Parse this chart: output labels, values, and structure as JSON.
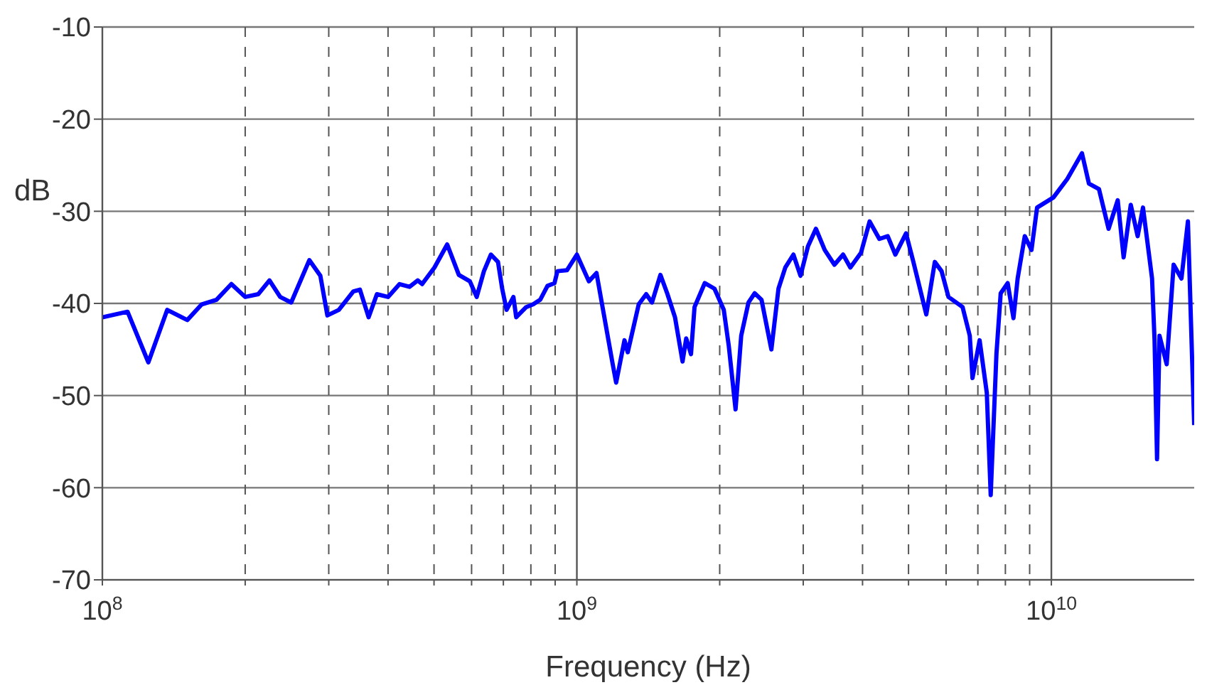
{
  "chart_data": {
    "type": "line",
    "xlabel": "Frequency (Hz)",
    "ylabel": "dB",
    "log": "x",
    "grid": true,
    "marker": "none",
    "line_style": "solid",
    "xlim": [
      100000000.0,
      20000000000.0
    ],
    "xticks": [
      {
        "value": 100000000.0,
        "label": "10$^{8}$"
      },
      {
        "value": 200000000.0,
        "label": null
      },
      {
        "value": 300000000.0,
        "label": null
      },
      {
        "value": 400000000.0,
        "label": null
      },
      {
        "value": 500000000.0,
        "label": null
      },
      {
        "value": 600000000.0,
        "label": null
      },
      {
        "value": 700000000.0,
        "label": null
      },
      {
        "value": 800000000.0,
        "label": null
      },
      {
        "value": 900000000.0,
        "label": null
      },
      {
        "value": 1000000000.0,
        "label": "10$^{9}$"
      },
      {
        "value": 2000000000.0,
        "label": null
      },
      {
        "value": 3000000000.0,
        "label": null
      },
      {
        "value": 4000000000.0,
        "label": null
      },
      {
        "value": 5000000000.0,
        "label": null
      },
      {
        "value": 6000000000.0,
        "label": null
      },
      {
        "value": 7000000000.0,
        "label": null
      },
      {
        "value": 8000000000.0,
        "label": null
      },
      {
        "value": 9000000000.0,
        "label": null
      },
      {
        "value": 10000000000.0,
        "label": "10$^{10}$"
      }
    ],
    "ylim": [
      -70,
      -10
    ],
    "yticks": [
      -70,
      -60,
      -50,
      -40,
      -30,
      -20,
      -10
    ],
    "series": [
      {
        "color": "#0000ff",
        "x": [
          100000000.0,
          113000000.0,
          125000000.0,
          137000000.0,
          151000000.0,
          162000000.0,
          174000000.0,
          187000000.0,
          200000000.0,
          213000000.0,
          225000000.0,
          237000000.0,
          250000000.0,
          273000000.0,
          288000000.0,
          298000000.0,
          315000000.0,
          338000000.0,
          349000000.0,
          364000000.0,
          379000000.0,
          400000000.0,
          423000000.0,
          444000000.0,
          462000000.0,
          472000000.0,
          501000000.0,
          533000000.0,
          564000000.0,
          595000000.0,
          615000000.0,
          637000000.0,
          659000000.0,
          682000000.0,
          696000000.0,
          711000000.0,
          735000000.0,
          745000000.0,
          782000000.0,
          809000000.0,
          837000000.0,
          867000000.0,
          897000000.0,
          910000000.0,
          953000000.0,
          1000000000.0,
          1060000000.0,
          1100000000.0,
          1140000000.0,
          1190000000.0,
          1210000000.0,
          1260000000.0,
          1280000000.0,
          1350000000.0,
          1400000000.0,
          1440000000.0,
          1500000000.0,
          1550000000.0,
          1610000000.0,
          1670000000.0,
          1700000000.0,
          1740000000.0,
          1770000000.0,
          1860000000.0,
          1950000000.0,
          2040000000.0,
          2090000000.0,
          2160000000.0,
          2220000000.0,
          2300000000.0,
          2370000000.0,
          2450000000.0,
          2570000000.0,
          2660000000.0,
          2750000000.0,
          2860000000.0,
          2960000000.0,
          3070000000.0,
          3190000000.0,
          3330000000.0,
          3490000000.0,
          3640000000.0,
          3770000000.0,
          3970000000.0,
          4140000000.0,
          4340000000.0,
          4520000000.0,
          4690000000.0,
          4940000000.0,
          5120000000.0,
          5450000000.0,
          5680000000.0,
          5870000000.0,
          6070000000.0,
          6500000000.0,
          6730000000.0,
          6820000000.0,
          7060000000.0,
          7310000000.0,
          7450000000.0,
          7660000000.0,
          7820000000.0,
          8090000000.0,
          8320000000.0,
          8490000000.0,
          8790000000.0,
          9080000000.0,
          9330000000.0,
          10100000000.0,
          10800000000.0,
          11600000000.0,
          12000000000.0,
          12600000000.0,
          13200000000.0,
          13800000000.0,
          14200000000.0,
          14700000000.0,
          15200000000.0,
          15600000000.0,
          16300000000.0,
          16500000000.0,
          16700000000.0,
          16900000000.0,
          17500000000.0,
          18100000000.0,
          18800000000.0,
          19400000000.0,
          19800000000.0,
          20000000000.0
        ],
        "values": [
          -41.5,
          -40.9,
          -46.4,
          -40.7,
          -41.8,
          -40.1,
          -39.6,
          -37.9,
          -39.3,
          -39.0,
          -37.5,
          -39.3,
          -39.9,
          -35.3,
          -37.0,
          -41.3,
          -40.7,
          -38.7,
          -38.5,
          -41.5,
          -39.0,
          -39.3,
          -37.9,
          -38.2,
          -37.5,
          -37.9,
          -36.1,
          -33.6,
          -36.9,
          -37.6,
          -39.3,
          -36.5,
          -34.7,
          -35.5,
          -38.4,
          -40.7,
          -39.3,
          -41.5,
          -40.4,
          -40.1,
          -39.6,
          -38.1,
          -37.8,
          -36.5,
          -36.4,
          -34.7,
          -37.6,
          -36.7,
          -41.2,
          -46.6,
          -48.6,
          -44.0,
          -45.3,
          -40.1,
          -39.0,
          -39.9,
          -36.9,
          -38.9,
          -41.5,
          -46.3,
          -43.8,
          -45.5,
          -40.4,
          -37.8,
          -38.4,
          -40.7,
          -44.6,
          -51.5,
          -43.5,
          -39.9,
          -38.9,
          -39.6,
          -45.0,
          -38.4,
          -36.1,
          -34.7,
          -37.0,
          -33.8,
          -31.9,
          -34.2,
          -35.8,
          -34.7,
          -36.1,
          -34.5,
          -31.1,
          -33.0,
          -32.7,
          -34.7,
          -32.4,
          -35.5,
          -41.2,
          -35.5,
          -36.5,
          -39.3,
          -40.4,
          -43.5,
          -48.1,
          -44.0,
          -49.7,
          -60.8,
          -45.5,
          -38.9,
          -37.8,
          -41.6,
          -37.3,
          -32.7,
          -34.2,
          -29.6,
          -28.5,
          -26.5,
          -23.7,
          -27.0,
          -27.6,
          -31.9,
          -28.8,
          -35.0,
          -29.3,
          -32.7,
          -29.6,
          -37.3,
          -44.0,
          -56.9,
          -43.5,
          -46.6,
          -35.8,
          -37.3,
          -31.1,
          -46.1,
          -53.2
        ]
      }
    ]
  }
}
